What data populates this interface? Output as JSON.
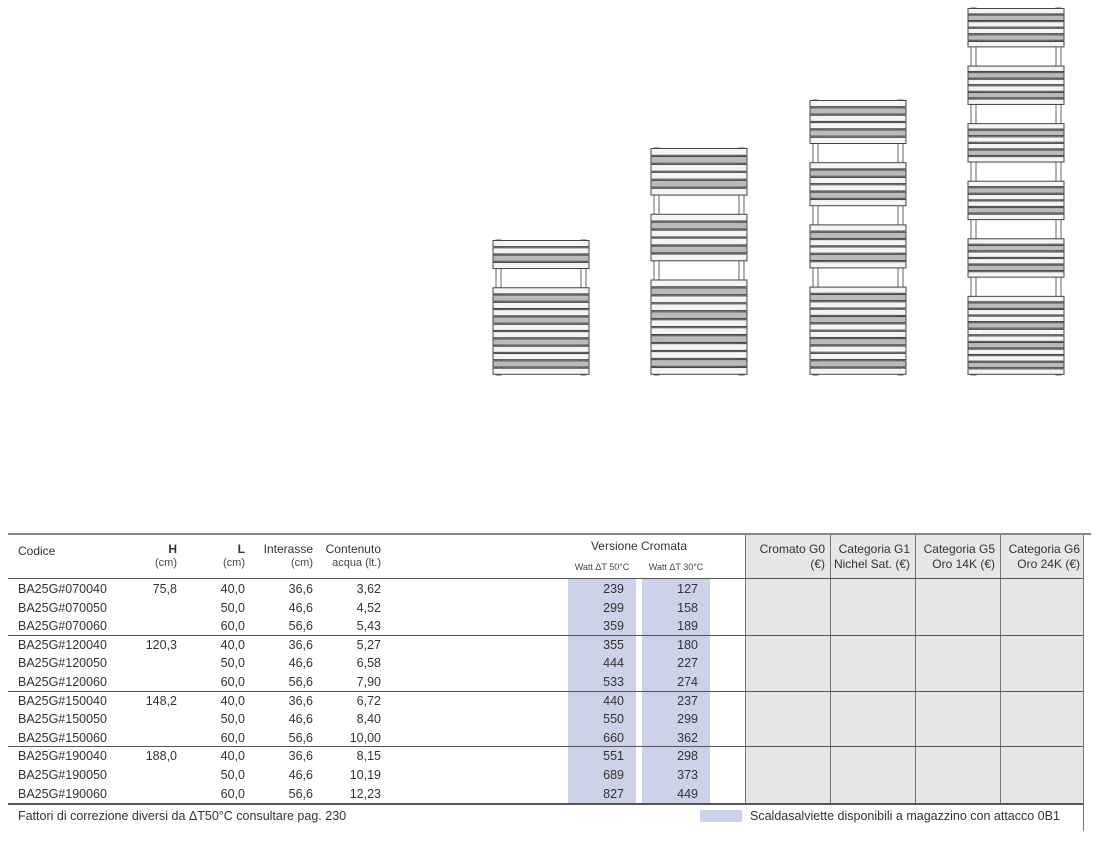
{
  "colors": {
    "stock_highlight": "#ccd2e8",
    "price_panel": "#e6e6e6"
  },
  "header": {
    "codice": "Codice",
    "h": "H",
    "h_unit": "(cm)",
    "l": "L",
    "l_unit": "(cm)",
    "interasse": "Interasse",
    "interasse_unit": "(cm)",
    "contenuto": "Contenuto",
    "contenuto_unit": "acqua (lt.)",
    "versione": "Versione Cromata",
    "watt50": "Watt ΔT 50°C",
    "watt30": "Watt ΔT 30°C",
    "prices": [
      {
        "line1": "Cromato G0",
        "line2": "(€)"
      },
      {
        "line1": "Categoria  G1",
        "line2": "Nichel Sat. (€)"
      },
      {
        "line1": "Categoria  G5",
        "line2": "Oro 14K (€)"
      },
      {
        "line1": "Categoria  G6",
        "line2": "Oro 24K (€)"
      }
    ]
  },
  "rows": [
    {
      "codice": "BA25G#070040",
      "h": "75,8",
      "l": "40,0",
      "interasse": "36,6",
      "contenuto": "3,62",
      "w50": "239",
      "w30": "127"
    },
    {
      "codice": "BA25G#070050",
      "h": "",
      "l": "50,0",
      "interasse": "46,6",
      "contenuto": "4,52",
      "w50": "299",
      "w30": "158"
    },
    {
      "codice": "BA25G#070060",
      "h": "",
      "l": "60,0",
      "interasse": "56,6",
      "contenuto": "5,43",
      "w50": "359",
      "w30": "189"
    },
    {
      "codice": "BA25G#120040",
      "h": "120,3",
      "l": "40,0",
      "interasse": "36,6",
      "contenuto": "5,27",
      "w50": "355",
      "w30": "180"
    },
    {
      "codice": "BA25G#120050",
      "h": "",
      "l": "50,0",
      "interasse": "46,6",
      "contenuto": "6,58",
      "w50": "444",
      "w30": "227"
    },
    {
      "codice": "BA25G#120060",
      "h": "",
      "l": "60,0",
      "interasse": "56,6",
      "contenuto": "7,90",
      "w50": "533",
      "w30": "274"
    },
    {
      "codice": "BA25G#150040",
      "h": "148,2",
      "l": "40,0",
      "interasse": "36,6",
      "contenuto": "6,72",
      "w50": "440",
      "w30": "237"
    },
    {
      "codice": "BA25G#150050",
      "h": "",
      "l": "50,0",
      "interasse": "46,6",
      "contenuto": "8,40",
      "w50": "550",
      "w30": "299"
    },
    {
      "codice": "BA25G#150060",
      "h": "",
      "l": "60,0",
      "interasse": "56,6",
      "contenuto": "10,00",
      "w50": "660",
      "w30": "362"
    },
    {
      "codice": "BA25G#190040",
      "h": "188,0",
      "l": "40,0",
      "interasse": "36,6",
      "contenuto": "8,15",
      "w50": "551",
      "w30": "298"
    },
    {
      "codice": "BA25G#190050",
      "h": "",
      "l": "50,0",
      "interasse": "46,6",
      "contenuto": "10,19",
      "w50": "689",
      "w30": "373"
    },
    {
      "codice": "BA25G#190060",
      "h": "",
      "l": "60,0",
      "interasse": "56,6",
      "contenuto": "12,23",
      "w50": "827",
      "w30": "449"
    }
  ],
  "footer": {
    "note": "Fattori di correzione diversi da ΔT50°C consultare pag. 230",
    "legend": "Scaldasalviette disponibili a magazzino con attacco 0B1"
  }
}
